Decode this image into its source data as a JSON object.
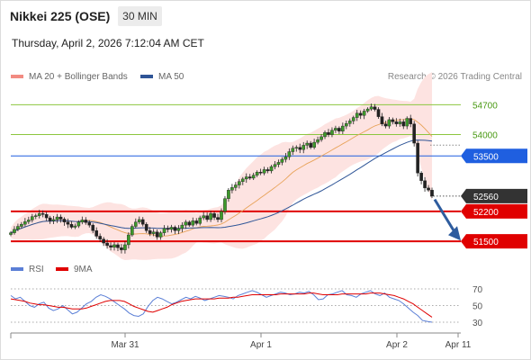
{
  "header": {
    "instrument": "Nikkei 225 (OSE)",
    "timeframe": "30 MIN",
    "datetime": "Thursday, April 2, 2026 7:12:04 AM CET"
  },
  "legend": {
    "bb_label": "MA 20 + Bollinger Bands",
    "ma50_label": "MA 50",
    "bb_color": "#f28b82",
    "ma50_color": "#2f5597",
    "copyright": "Research © 2026 Trading Central"
  },
  "rsi_legend": {
    "rsi_label": "RSI",
    "ma9_label": "9MA",
    "rsi_color": "#5b7fd6",
    "ma9_color": "#e00000"
  },
  "chart_data": {
    "type": "candlestick",
    "x_ticks": [
      "Mar 31",
      "Apr 1",
      "Apr 2",
      "Apr 11"
    ],
    "y_range": [
      51250,
      55150
    ],
    "levels": [
      {
        "value": 54700,
        "label": "54700",
        "kind": "resistance",
        "color": "#8cc63f"
      },
      {
        "value": 54000,
        "label": "54000",
        "kind": "resistance",
        "color": "#8cc63f"
      },
      {
        "value": 53500,
        "label": "53500",
        "kind": "pivot",
        "color": "#1f5fe0"
      },
      {
        "value": 52560,
        "label": "52560",
        "kind": "last_price",
        "color": "#333333"
      },
      {
        "value": 52200,
        "label": "52200",
        "kind": "support",
        "color": "#e00000"
      },
      {
        "value": 51500,
        "label": "51500",
        "kind": "support",
        "color": "#e00000"
      }
    ],
    "arrow": {
      "direction": "down",
      "color": "#2e5c9e"
    },
    "closes": [
      51700,
      51780,
      51850,
      51900,
      51960,
      52000,
      52080,
      52100,
      52150,
      52130,
      52050,
      51980,
      52010,
      52070,
      52020,
      51950,
      51900,
      51830,
      51860,
      51950,
      52000,
      51940,
      51880,
      51750,
      51620,
      51550,
      51460,
      51400,
      51360,
      51420,
      51350,
      51300,
      51420,
      51650,
      51850,
      51950,
      52010,
      51900,
      51750,
      51680,
      51720,
      51600,
      51700,
      51800,
      51780,
      51830,
      51750,
      51800,
      51880,
      51950,
      51880,
      51980,
      51920,
      52050,
      52100,
      52010,
      52150,
      52060,
      52010,
      52200,
      52500,
      52700,
      52760,
      52820,
      52900,
      52960,
      53010,
      52980,
      53050,
      53120,
      53100,
      53180,
      53150,
      53250,
      53300,
      53350,
      53420,
      53480,
      53600,
      53680,
      53700,
      53650,
      53750,
      53800,
      53700,
      53820,
      53880,
      53950,
      54050,
      54000,
      54100,
      54150,
      54080,
      54200,
      54260,
      54320,
      54400,
      54500,
      54450,
      54550,
      54600,
      54650,
      54590,
      54420,
      54250,
      54200,
      54350,
      54300,
      54250,
      54300,
      54200,
      54380,
      54250,
      53800,
      53100,
      52920,
      52750,
      52700,
      52560
    ],
    "rsi": {
      "y_ticks": [
        70,
        50,
        30
      ],
      "values": [
        62,
        58,
        60,
        55,
        50,
        48,
        52,
        54,
        47,
        44,
        46,
        50,
        45,
        40,
        42,
        47,
        52,
        55,
        60,
        63,
        61,
        58,
        54,
        50,
        46,
        41,
        38,
        37,
        40,
        49,
        56,
        60,
        58,
        55,
        52,
        54,
        57,
        60,
        58,
        61,
        59,
        56,
        58,
        60,
        62,
        61,
        60,
        58,
        62,
        64,
        66,
        68,
        66,
        63,
        60,
        62,
        64,
        66,
        65,
        63,
        64,
        66,
        65,
        67,
        63,
        57,
        58,
        63,
        64,
        66,
        68,
        63,
        62,
        60,
        64,
        66,
        68,
        64,
        62,
        65,
        60,
        58,
        56,
        52,
        47,
        42,
        38,
        32,
        31,
        30
      ],
      "ma9": [
        58,
        57,
        56,
        55,
        53,
        52,
        51,
        51,
        50,
        49,
        48,
        48,
        47,
        46,
        46,
        46,
        47,
        49,
        51,
        53,
        55,
        56,
        56,
        56,
        55,
        52,
        49,
        47,
        45,
        43,
        42,
        44,
        46,
        48,
        51,
        53,
        55,
        56,
        57,
        58,
        58,
        58,
        58,
        58,
        59,
        59,
        59,
        60,
        60,
        61,
        62,
        63,
        63,
        63,
        63,
        63,
        63,
        64,
        64,
        64,
        64,
        64,
        64,
        65,
        65,
        64,
        63,
        63,
        63,
        63,
        64,
        64,
        64,
        64,
        64,
        64,
        65,
        65,
        65,
        64,
        63,
        62,
        60,
        58,
        55,
        52,
        48,
        44,
        40,
        36
      ]
    }
  }
}
